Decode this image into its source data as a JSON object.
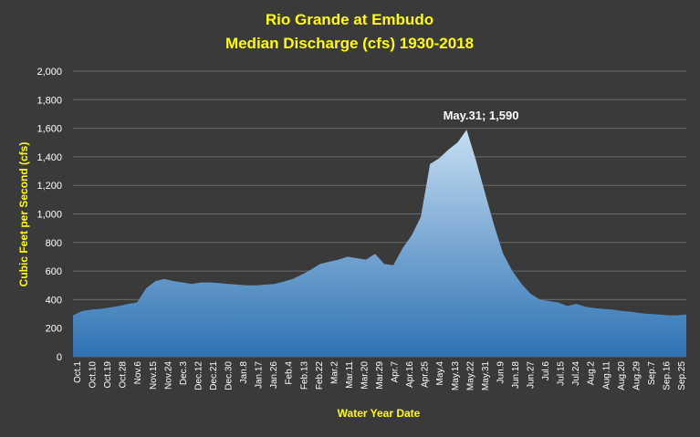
{
  "chart_data": {
    "type": "area",
    "title": "Rio Grande at Embudo",
    "subtitle": "Median Discharge (cfs) 1930-2018",
    "xlabel": "Water Year Date",
    "ylabel": "Cubic Feet per Second (cfs)",
    "ylim": [
      0,
      2000
    ],
    "y_ticks": [
      "0",
      "200",
      "400",
      "600",
      "800",
      "1,000",
      "1,200",
      "1,400",
      "1,600",
      "1,800",
      "2,000"
    ],
    "x_tick_labels": [
      "Oct.1",
      "Oct.10",
      "Oct.19",
      "Oct.28",
      "Nov.6",
      "Nov.15",
      "Nov.24",
      "Dec.3",
      "Dec.12",
      "Dec.21",
      "Dec.30",
      "Jan.8",
      "Jan.17",
      "Jan.26",
      "Feb.4",
      "Feb.13",
      "Feb.22",
      "Mar.2",
      "Mar.11",
      "Mar.20",
      "Mar.29",
      "Apr.7",
      "Apr.16",
      "Apr.25",
      "May.4",
      "May.13",
      "May.22",
      "May.31",
      "Jun.9",
      "Jun.18",
      "Jun.27",
      "Jul.6",
      "Jul.15",
      "Jul.24",
      "Aug.2",
      "Aug.11",
      "Aug.20",
      "Aug.29",
      "Sep.7",
      "Sep.16",
      "Sep.25"
    ],
    "grid": "horizontal",
    "legend": "none",
    "series": [
      {
        "values": [
          290,
          320,
          330,
          335,
          345,
          355,
          370,
          380,
          480,
          530,
          545,
          530,
          520,
          510,
          520,
          520,
          515,
          510,
          505,
          500,
          500,
          505,
          510,
          525,
          545,
          575,
          610,
          650,
          665,
          680,
          700,
          690,
          680,
          720,
          650,
          640,
          760,
          850,
          980,
          1350,
          1390,
          1450,
          1500,
          1590,
          1380,
          1150,
          920,
          720,
          600,
          510,
          440,
          400,
          390,
          380,
          355,
          370,
          350,
          340,
          335,
          330,
          320,
          315,
          305,
          300,
          295,
          290,
          290,
          295
        ]
      }
    ],
    "annotation": "May.31; 1,590",
    "colors": {
      "background": "#3a3a3a",
      "fill_top": "#bcd9f2",
      "fill_bottom": "#2e75b6",
      "title": "#ffff00",
      "text": "#ffffff"
    }
  }
}
